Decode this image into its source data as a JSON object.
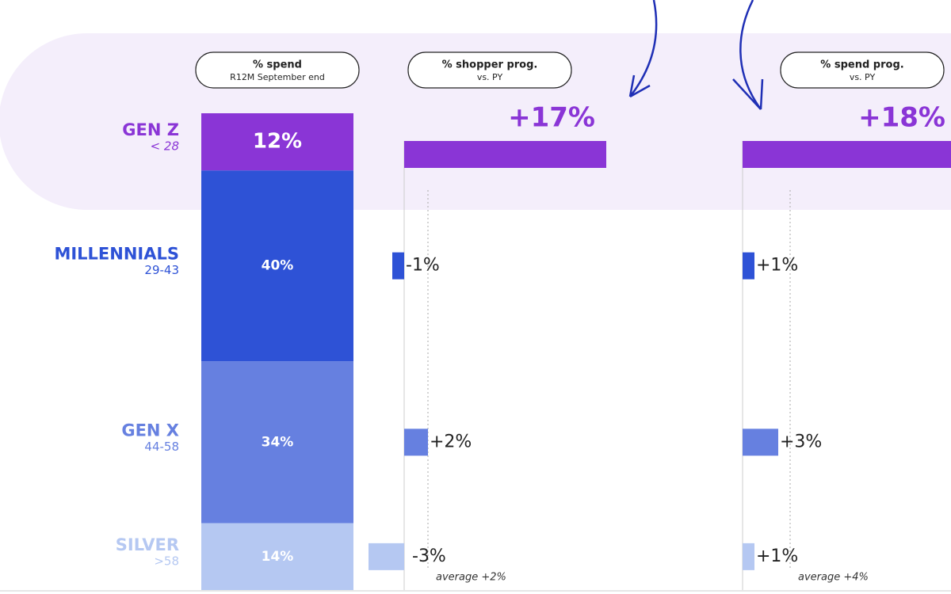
{
  "chart_data": [
    {
      "type": "stacked_bar",
      "title": "% spend",
      "subtitle": "R12M September end",
      "categories": [
        "GEN Z",
        "MILLENNIALS",
        "GEN X",
        "SILVER"
      ],
      "category_subtitles": [
        "< 28",
        "29-43",
        "44-58",
        ">58"
      ],
      "colors": [
        "#8a35d6",
        "#2e52d6",
        "#6680e0",
        "#b5c8f2"
      ],
      "values": [
        12,
        40,
        34,
        14
      ],
      "value_labels": [
        "12%",
        "40%",
        "34%",
        "14%"
      ]
    },
    {
      "type": "bar",
      "title": "% shopper prog.",
      "subtitle": "vs. PY",
      "values": [
        17,
        -1,
        2,
        -3
      ],
      "value_labels": [
        "+17%",
        "-1%",
        "+2%",
        "-3%"
      ],
      "average": 2,
      "average_label": "average +2%"
    },
    {
      "type": "bar",
      "title": "% spend prog.",
      "subtitle": "vs. PY",
      "values": [
        18,
        1,
        3,
        1
      ],
      "value_labels": [
        "+18%",
        "+1%",
        "+3%",
        "+1%"
      ],
      "average": 4,
      "average_label": "average +4%"
    }
  ]
}
